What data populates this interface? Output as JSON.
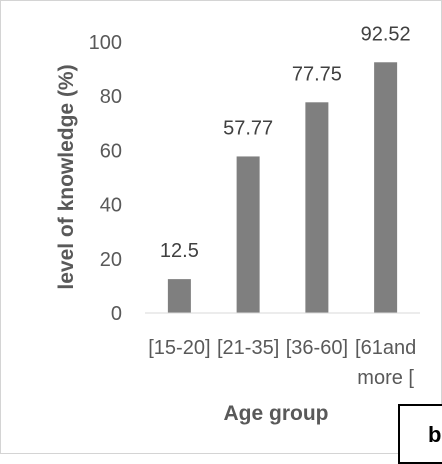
{
  "chart_data": {
    "type": "bar",
    "categories": [
      "[15-20]",
      "[21-35]",
      "[36-60]",
      "[61and more ["
    ],
    "category_lines": [
      [
        "[15-20]"
      ],
      [
        "[21-35]"
      ],
      [
        "[36-60]"
      ],
      [
        "[61and",
        "more ["
      ]
    ],
    "values": [
      12.5,
      57.77,
      77.75,
      92.52
    ],
    "data_labels": [
      "12.5",
      "57.77",
      "77.75",
      "92.52"
    ],
    "title": "",
    "xlabel": "Age group",
    "ylabel": "level of knowledge (%)",
    "ylim": [
      0,
      100
    ],
    "yticks": [
      "0",
      "20",
      "40",
      "60",
      "80",
      "100"
    ],
    "grid": false,
    "legend": "none",
    "bar_color": "#7f7f7f"
  },
  "panel_label": "b"
}
